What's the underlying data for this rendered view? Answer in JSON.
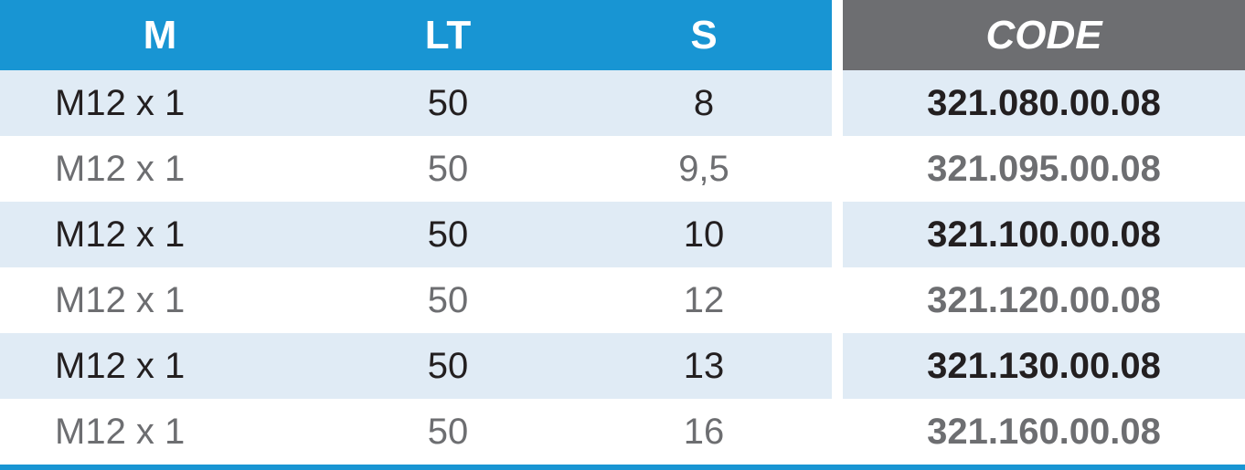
{
  "table": {
    "columns": [
      "M",
      "LT",
      "S",
      "CODE"
    ],
    "header": {
      "blue_bg": "#1895d3",
      "gray_bg": "#6d6e71",
      "text_color": "#ffffff",
      "font_size": 44,
      "code_italic": true
    },
    "row_colors": {
      "odd_bg": "#e0ebf5",
      "even_bg": "#ffffff"
    },
    "text_colors": {
      "dark": "#231f20",
      "gray": "#6d6e71"
    },
    "border_bottom_color": "#1895d3",
    "border_bottom_width": 6,
    "col_widths": {
      "m": 350,
      "lt": 280,
      "s": 280,
      "gap": 12,
      "code": 440
    },
    "font_size_body": 40,
    "rows": [
      {
        "m": "M12 x 1",
        "lt": "50",
        "s": "8",
        "code": "321.080.00.08",
        "style": "dark"
      },
      {
        "m": "M12 x 1",
        "lt": "50",
        "s": "9,5",
        "code": "321.095.00.08",
        "style": "gray"
      },
      {
        "m": "M12 x 1",
        "lt": "50",
        "s": "10",
        "code": "321.100.00.08",
        "style": "dark"
      },
      {
        "m": "M12 x 1",
        "lt": "50",
        "s": "12",
        "code": "321.120.00.08",
        "style": "gray"
      },
      {
        "m": "M12 x 1",
        "lt": "50",
        "s": "13",
        "code": "321.130.00.08",
        "style": "dark"
      },
      {
        "m": "M12 x 1",
        "lt": "50",
        "s": "16",
        "code": "321.160.00.08",
        "style": "gray"
      }
    ]
  }
}
